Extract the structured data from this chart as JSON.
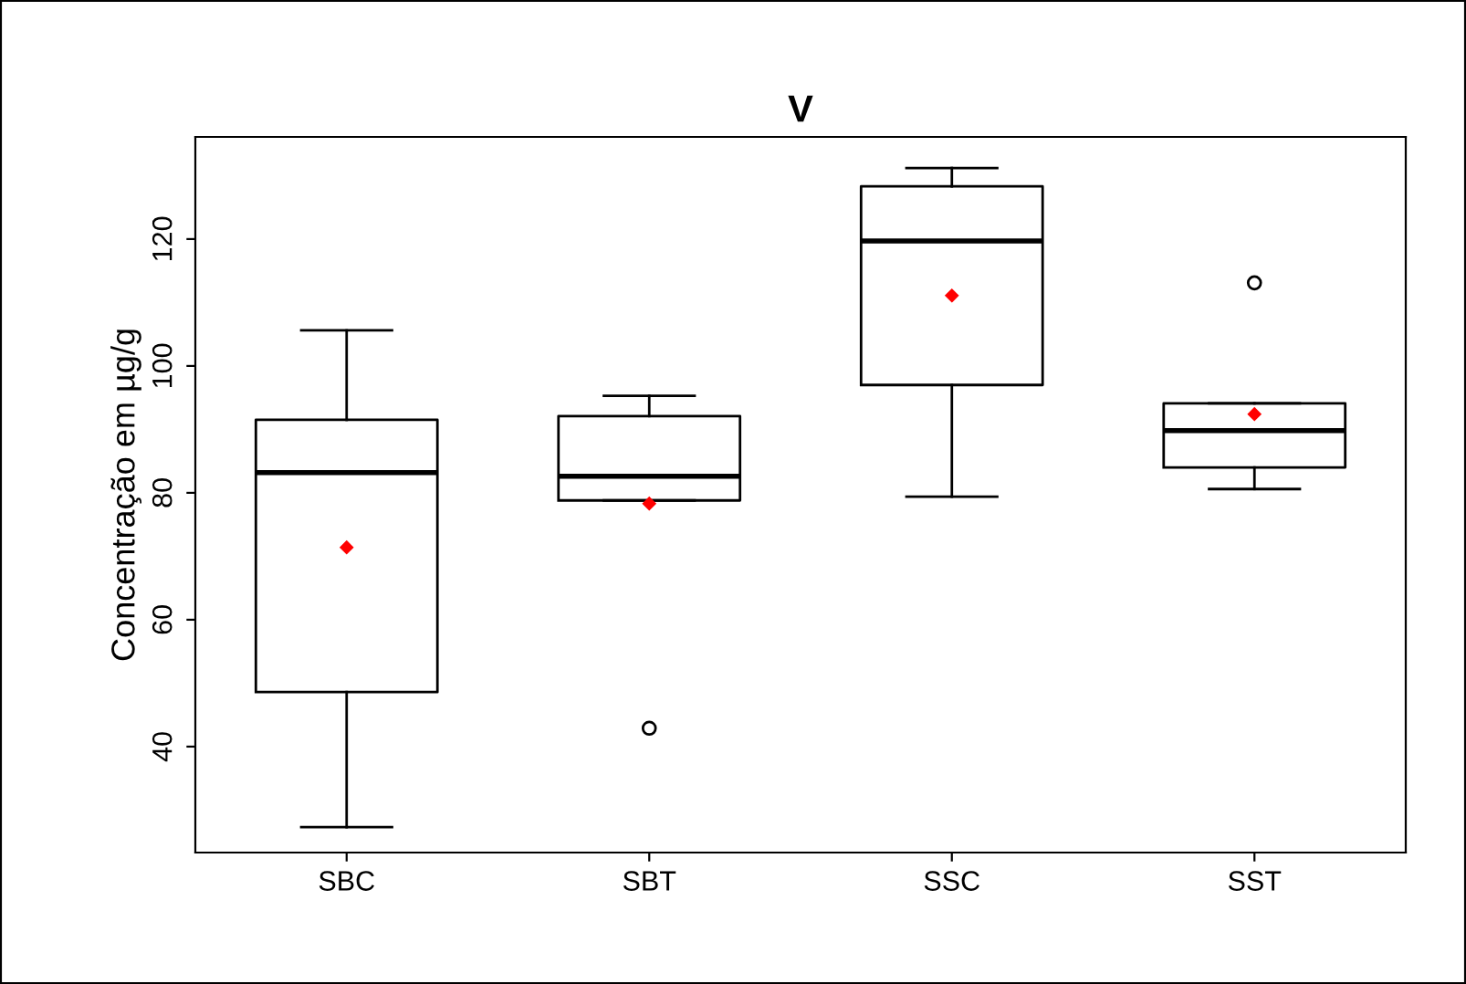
{
  "chart_data": {
    "type": "box",
    "title": "V",
    "ylabel": "Concentração em µg/g",
    "categories": [
      "SBC",
      "SBT",
      "SSC",
      "SST"
    ],
    "boxes": [
      {
        "low": 27.3,
        "q1": 48.6,
        "median": 83.2,
        "q3": 91.5,
        "high": 105.6,
        "mean": 71.4
      },
      {
        "low": 78.8,
        "q1": 78.8,
        "median": 82.6,
        "q3": 92.1,
        "high": 95.3,
        "mean": 78.3,
        "outliers": [
          42.9
        ]
      },
      {
        "low": 79.4,
        "q1": 97.0,
        "median": 119.7,
        "q3": 128.3,
        "high": 131.2,
        "mean": 111.1
      },
      {
        "low": 80.6,
        "q1": 84.0,
        "median": 89.8,
        "q3": 94.1,
        "high": 94.1,
        "mean": 92.4,
        "outliers": [
          113.1
        ]
      }
    ],
    "ylim": [
      23.3,
      136.1
    ],
    "yticks": [
      40,
      60,
      80,
      100,
      120
    ],
    "grid": false
  }
}
